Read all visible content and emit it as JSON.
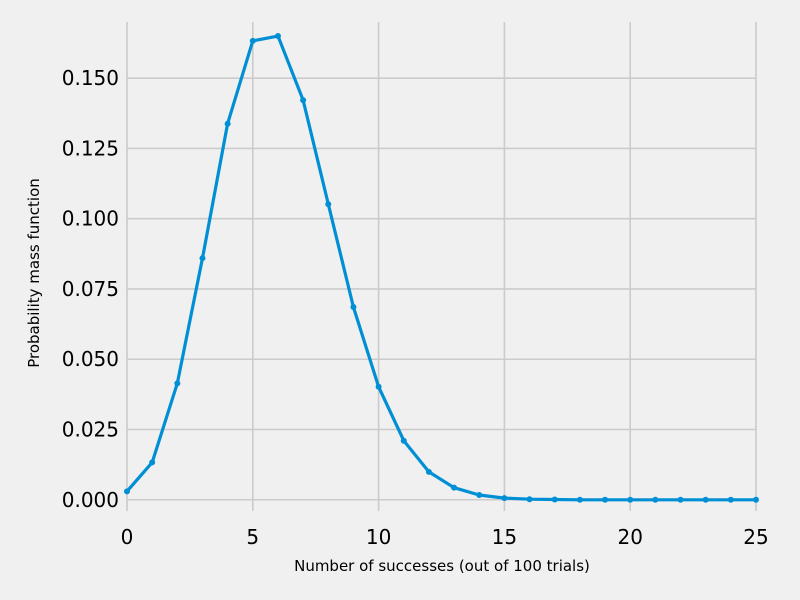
{
  "chart_data": {
    "type": "line",
    "title": "",
    "xlabel": "Number of successes (out of 100 trials)",
    "ylabel": "Probability mass function",
    "xlim": [
      0,
      25
    ],
    "ylim": [
      -0.004,
      0.17
    ],
    "xticks": [
      0,
      5,
      10,
      15,
      20,
      25
    ],
    "xtick_labels": [
      "0",
      "5",
      "10",
      "15",
      "20",
      "25"
    ],
    "yticks": [
      0.0,
      0.025,
      0.05,
      0.075,
      0.1,
      0.125,
      0.15
    ],
    "ytick_labels": [
      "0.000",
      "0.025",
      "0.050",
      "0.075",
      "0.100",
      "0.125",
      "0.150"
    ],
    "grid": true,
    "legend": "none",
    "series": [
      {
        "color": "#008fd5",
        "marker": "dot",
        "x": [
          0,
          1,
          2,
          3,
          4,
          5,
          6,
          7,
          8,
          9,
          10,
          11,
          12,
          13,
          14,
          15,
          16,
          17,
          18,
          19,
          20,
          21,
          22,
          23,
          24,
          25
        ],
        "y": [
          0.003,
          0.0133,
          0.0414,
          0.086,
          0.1338,
          0.1633,
          0.165,
          0.1422,
          0.1052,
          0.0686,
          0.0402,
          0.021,
          0.0099,
          0.0043,
          0.0017,
          0.0006,
          0.0002,
          0.0001,
          0.0,
          0.0,
          0.0,
          0.0,
          0.0,
          0.0,
          0.0,
          0.0
        ]
      }
    ]
  },
  "colors": {
    "background": "#f0f0f0",
    "grid": "#cbcbcb",
    "line": "#008fd5"
  }
}
